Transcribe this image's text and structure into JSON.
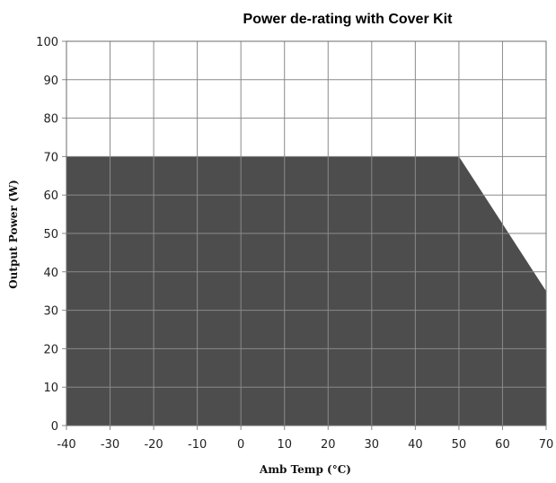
{
  "chart_data": {
    "type": "area",
    "title": "Power de-rating with Cover Kit",
    "xlabel": "Amb Temp (°C)",
    "ylabel": "Output Power (W)",
    "xlim": [
      -40,
      70
    ],
    "ylim": [
      0,
      100
    ],
    "xticks": [
      -40,
      -30,
      -20,
      -10,
      0,
      10,
      20,
      30,
      40,
      50,
      60,
      70
    ],
    "yticks": [
      0,
      10,
      20,
      30,
      40,
      50,
      60,
      70,
      80,
      90,
      100
    ],
    "grid": true,
    "fill_color": "#4d4d4d",
    "series": [
      {
        "x": [
          -40,
          50,
          70
        ],
        "y": [
          70,
          70,
          35
        ]
      }
    ]
  }
}
